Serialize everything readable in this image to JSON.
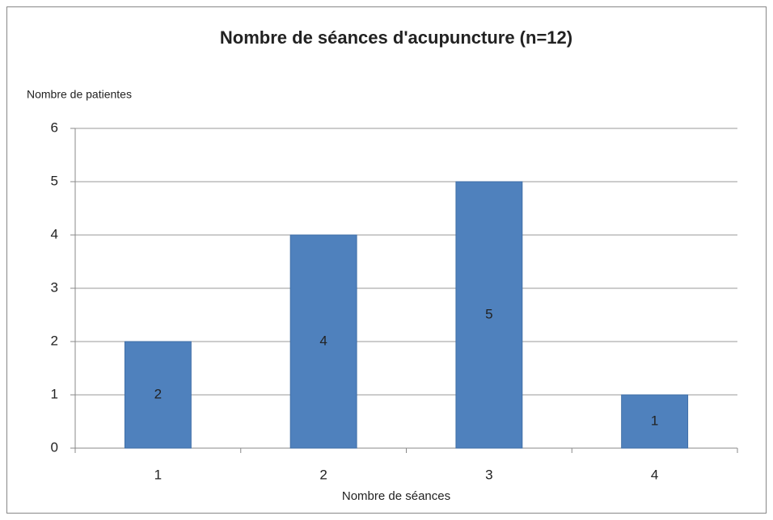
{
  "chart_data": {
    "type": "bar",
    "title": "Nombre de séances d'acupuncture (n=12)",
    "y_label": "Nombre de patientes",
    "x_label": "Nombre de séances",
    "categories": [
      "1",
      "2",
      "3",
      "4"
    ],
    "values": [
      2,
      4,
      5,
      1
    ],
    "color": "#4f81bd",
    "ylim": [
      0,
      6
    ],
    "yticks": [
      0,
      1,
      2,
      3,
      4,
      5,
      6
    ],
    "grid": true
  }
}
